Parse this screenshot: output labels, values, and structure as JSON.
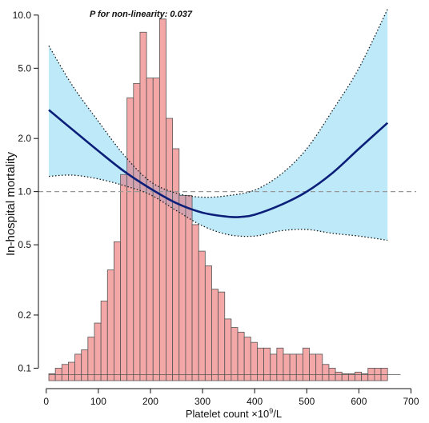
{
  "chart_data": {
    "type": "line",
    "annotation": "P for non-linearity: 0.037",
    "xlabel": "Platelet count ×10⁹/L",
    "xlabel_parts": {
      "prefix": "Platelet count ×10",
      "sup": "9",
      "suffix": "/L"
    },
    "ylabel": "In-hospital mortality",
    "x_ticks": [
      0,
      100,
      200,
      300,
      400,
      500,
      600,
      700
    ],
    "y_ticks": [
      0.1,
      0.2,
      0.5,
      1.0,
      2.0,
      5.0,
      10.0
    ],
    "y_tick_labels": [
      "0.1",
      "0.2",
      "0.5",
      "1.0",
      "2.0",
      "5.0",
      "10.0"
    ],
    "xlim": [
      -15,
      710
    ],
    "ylim": [
      0.085,
      11.2
    ],
    "y_scale": "log",
    "reference_line": 1.0,
    "colors": {
      "curve": "#0b1f7a",
      "ci_fill": "#bde9f8",
      "histogram_fill": "#f4a7a7",
      "histogram_stroke": "#555555",
      "reference": "#999999"
    },
    "series": [
      {
        "role": "estimate",
        "x": [
          5,
          50,
          100,
          150,
          200,
          250,
          300,
          350,
          375,
          400,
          450,
          500,
          550,
          600,
          655
        ],
        "y": [
          2.9,
          2.25,
          1.7,
          1.3,
          1.04,
          0.86,
          0.76,
          0.72,
          0.72,
          0.74,
          0.84,
          1.0,
          1.28,
          1.75,
          2.45
        ]
      },
      {
        "role": "upper_ci",
        "x": [
          5,
          50,
          100,
          150,
          200,
          250,
          300,
          350,
          400,
          450,
          500,
          550,
          600,
          655
        ],
        "y": [
          6.7,
          4.0,
          2.5,
          1.6,
          1.14,
          0.98,
          0.93,
          0.95,
          1.02,
          1.25,
          1.75,
          2.9,
          5.0,
          10.8
        ]
      },
      {
        "role": "lower_ci",
        "x": [
          5,
          50,
          100,
          150,
          200,
          250,
          300,
          350,
          400,
          450,
          500,
          550,
          600,
          655
        ],
        "y": [
          1.22,
          1.24,
          1.18,
          1.08,
          0.96,
          0.78,
          0.64,
          0.57,
          0.56,
          0.6,
          0.61,
          0.58,
          0.56,
          0.53
        ]
      }
    ],
    "histogram": {
      "bin_width": 12.5,
      "bin_starts": [
        5,
        17.5,
        30,
        42.5,
        55,
        67.5,
        80,
        92.5,
        105,
        117.5,
        130,
        142.5,
        155,
        167.5,
        180,
        192.5,
        205,
        217.5,
        230,
        242.5,
        255,
        267.5,
        280,
        292.5,
        305,
        317.5,
        330,
        342.5,
        355,
        367.5,
        380,
        392.5,
        405,
        417.5,
        430,
        442.5,
        455,
        467.5,
        480,
        492.5,
        505,
        517.5,
        530,
        542.5,
        555,
        567.5,
        580,
        592.5,
        605,
        617.5,
        630,
        642.5
      ],
      "heights": [
        0.093,
        0.1,
        0.105,
        0.108,
        0.12,
        0.127,
        0.15,
        0.18,
        0.24,
        0.36,
        0.52,
        1.25,
        3.4,
        4.1,
        8.0,
        4.4,
        4.4,
        9.5,
        2.6,
        1.75,
        0.95,
        0.95,
        0.65,
        0.46,
        0.38,
        0.28,
        0.27,
        0.19,
        0.17,
        0.16,
        0.15,
        0.14,
        0.13,
        0.13,
        0.12,
        0.13,
        0.12,
        0.12,
        0.12,
        0.13,
        0.12,
        0.12,
        0.105,
        0.1,
        0.095,
        0.093,
        0.093,
        0.095,
        0.093,
        0.1,
        0.1,
        0.1
      ]
    }
  }
}
